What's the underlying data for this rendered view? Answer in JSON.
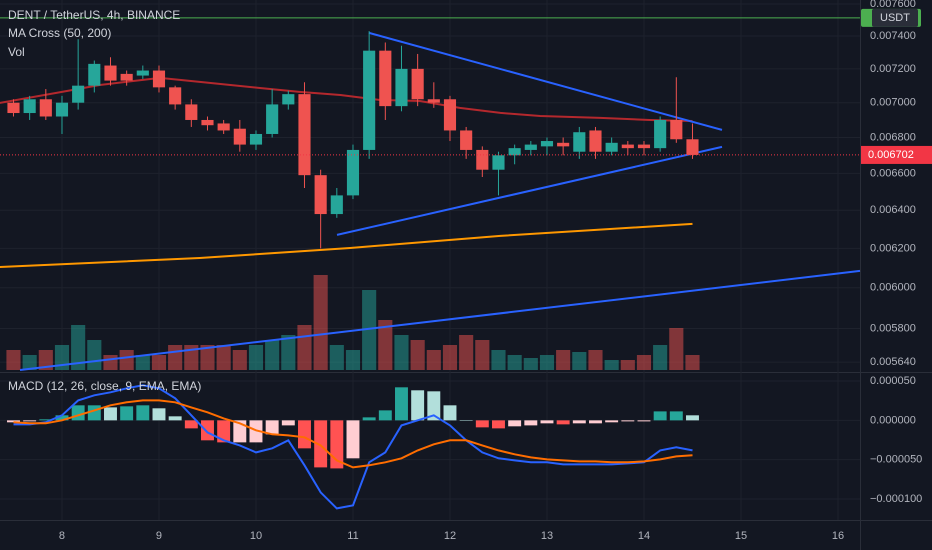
{
  "chart_data": [
    {
      "type": "candlestick",
      "title": "DENT / TetherUS, 4h, BINANCE",
      "indicator": "MA Cross (50, 200)",
      "volume_label": "Vol",
      "currency": "USDT",
      "log_scale": true,
      "grid": true,
      "up_color": "#26a69a",
      "down_color": "#ef5350",
      "x": [
        7.5,
        7.6667,
        7.8333,
        8,
        8.1667,
        8.3333,
        8.5,
        8.6667,
        8.8333,
        9,
        9.1667,
        9.3333,
        9.5,
        9.6667,
        9.8333,
        10,
        10.1667,
        10.3333,
        10.5,
        10.6667,
        10.8333,
        11,
        11.1667,
        11.3333,
        11.5,
        11.6667,
        11.8333,
        12,
        12.1667,
        12.3333,
        12.5,
        12.6667,
        12.8333,
        13,
        13.1667,
        13.3333,
        13.5,
        13.6667,
        13.8333,
        14,
        14.1667,
        14.3333,
        14.5
      ],
      "open": [
        0.007,
        0.00694,
        0.00702,
        0.00692,
        0.007,
        0.0071,
        0.00722,
        0.00717,
        0.00716,
        0.00719,
        0.00709,
        0.00699,
        0.0069,
        0.00688,
        0.00685,
        0.00676,
        0.00682,
        0.00699,
        0.00705,
        0.00659,
        0.00638,
        0.00648,
        0.00673,
        0.00731,
        0.00698,
        0.0072,
        0.00702,
        0.00702,
        0.00684,
        0.00673,
        0.00662,
        0.0067,
        0.00673,
        0.00675,
        0.00677,
        0.00672,
        0.00684,
        0.00672,
        0.00676,
        0.00676,
        0.00674,
        0.0069,
        0.00679
      ],
      "high": [
        0.00702,
        0.00704,
        0.00708,
        0.00704,
        0.00738,
        0.00725,
        0.00727,
        0.00719,
        0.00722,
        0.00722,
        0.0071,
        0.00702,
        0.00692,
        0.0069,
        0.0069,
        0.00684,
        0.00708,
        0.00707,
        0.00712,
        0.00662,
        0.00652,
        0.00676,
        0.00743,
        0.00736,
        0.00734,
        0.00729,
        0.00712,
        0.00704,
        0.00686,
        0.00675,
        0.00672,
        0.00676,
        0.00678,
        0.0068,
        0.0068,
        0.00686,
        0.00686,
        0.0068,
        0.00678,
        0.00678,
        0.00692,
        0.00715,
        0.00688
      ],
      "low": [
        0.00692,
        0.0069,
        0.0069,
        0.00682,
        0.00696,
        0.00706,
        0.0071,
        0.0071,
        0.00714,
        0.00706,
        0.00696,
        0.00686,
        0.00684,
        0.00682,
        0.00672,
        0.00673,
        0.0068,
        0.00696,
        0.00652,
        0.0062,
        0.00636,
        0.00646,
        0.00668,
        0.0069,
        0.00695,
        0.00698,
        0.00697,
        0.00678,
        0.00668,
        0.00658,
        0.00648,
        0.00665,
        0.0067,
        0.0067,
        0.0067,
        0.00668,
        0.00668,
        0.0067,
        0.0067,
        0.0067,
        0.00672,
        0.00677,
        0.00668
      ],
      "close": [
        0.00694,
        0.00702,
        0.00692,
        0.007,
        0.0071,
        0.00723,
        0.00713,
        0.00713,
        0.00719,
        0.00709,
        0.00699,
        0.0069,
        0.00687,
        0.00684,
        0.00676,
        0.00682,
        0.00699,
        0.00705,
        0.00659,
        0.00638,
        0.00648,
        0.00673,
        0.00731,
        0.00698,
        0.0072,
        0.00702,
        0.007,
        0.00684,
        0.00673,
        0.00662,
        0.0067,
        0.00674,
        0.00676,
        0.00678,
        0.00675,
        0.00683,
        0.00672,
        0.00677,
        0.00674,
        0.00674,
        0.0069,
        0.00679,
        0.006702
      ],
      "volume": [
        20,
        15,
        20,
        25,
        45,
        30,
        15,
        20,
        15,
        15,
        25,
        25,
        25,
        25,
        20,
        25,
        30,
        35,
        45,
        95,
        25,
        20,
        80,
        50,
        35,
        30,
        20,
        25,
        35,
        30,
        20,
        15,
        12,
        15,
        20,
        18,
        20,
        10,
        10,
        15,
        25,
        42,
        15
      ],
      "lines": [
        {
          "color": "#b4282d",
          "x": [
            7.36,
            8,
            8.39,
            9.01,
            9.42,
            10.04,
            10.45,
            10.87,
            11.28,
            11.69,
            12.1,
            12.52,
            12.93,
            13.55,
            14.06,
            14.5
          ],
          "values": [
            0.006999,
            0.007063,
            0.007104,
            0.007146,
            0.007122,
            0.007086,
            0.007063,
            0.007045,
            0.007016,
            0.00701,
            0.00697,
            0.006941,
            0.006923,
            0.006912,
            0.0069,
            0.006894
          ]
        },
        {
          "color": "#ff9800",
          "x": [
            7.36,
            9.42,
            10.97,
            12.52,
            14.5
          ],
          "values": [
            0.006105,
            0.006151,
            0.006202,
            0.006265,
            0.006328
          ]
        },
        {
          "color": "#2962ff",
          "x": [
            11.165,
            14.804
          ],
          "values": [
            0.007419,
            0.006843
          ]
        },
        {
          "color": "#2962ff",
          "x": [
            10.835,
            14.804
          ],
          "values": [
            0.00627,
            0.006747
          ]
        },
        {
          "color": "#2962ff",
          "x": [
            7.567,
            16.227
          ],
          "values": [
            0.005603,
            0.006085
          ]
        }
      ],
      "hline": {
        "value": 0.007512,
        "color": "#4caf50"
      },
      "price_line": {
        "value": 0.006702,
        "label": "0.006702",
        "color": "#f23645"
      },
      "xlim": [
        7.361,
        16.227
      ],
      "xticks": [
        8,
        9,
        10,
        11,
        12,
        13,
        14,
        15,
        16
      ],
      "ylim": [
        0.005603,
        0.007625
      ],
      "yticks": [
        {
          "value": 0.0076,
          "label": "0.007600"
        },
        {
          "value": 0.0074,
          "label": "0.007400"
        },
        {
          "value": 0.0072,
          "label": "0.007200"
        },
        {
          "value": 0.007,
          "label": "0.007000"
        },
        {
          "value": 0.0068,
          "label": "0.006800"
        },
        {
          "value": 0.0066,
          "label": "0.006600"
        },
        {
          "value": 0.0064,
          "label": "0.006400"
        },
        {
          "value": 0.0062,
          "label": "0.006200"
        },
        {
          "value": 0.006,
          "label": "0.006000"
        },
        {
          "value": 0.0058,
          "label": "0.005800"
        },
        {
          "value": 0.00564,
          "label": "0.005640"
        }
      ]
    },
    {
      "type": "macd",
      "title": "MACD (12, 26, close, 9, EMA, EMA)",
      "histogram_colors": [
        "#26a69a",
        "#b2dfdb",
        "#ffcdd2",
        "#ff5252"
      ],
      "x": [
        7.5,
        7.6667,
        7.8333,
        8,
        8.1667,
        8.3333,
        8.5,
        8.6667,
        8.8333,
        9,
        9.1667,
        9.3333,
        9.5,
        9.6667,
        9.8333,
        10,
        10.1667,
        10.3333,
        10.5,
        10.6667,
        10.8333,
        11,
        11.1667,
        11.3333,
        11.5,
        11.6667,
        11.8333,
        12,
        12.1667,
        12.3333,
        12.5,
        12.6667,
        12.8333,
        13,
        13.1667,
        13.3333,
        13.5,
        13.6667,
        13.8333,
        14,
        14.1667,
        14.3333,
        14.5
      ],
      "histogram": [
        -2.5e-06,
        -1.3e-06,
        1.3e-06,
        6.4e-06,
        1.91e-05,
        1.91e-05,
        1.65e-05,
        1.78e-05,
        1.91e-05,
        1.53e-05,
        5.1e-06,
        -1.02e-05,
        -2.54e-05,
        -2.8e-05,
        -2.8e-05,
        -2.8e-05,
        -1.78e-05,
        -6.4e-06,
        -3.56e-05,
        -5.98e-05,
        -6.11e-05,
        -4.83e-05,
        3.8e-06,
        1.27e-05,
        4.2e-05,
        3.82e-05,
        3.69e-05,
        1.91e-05,
        0,
        -8.9e-06,
        -1.02e-05,
        -7.6e-06,
        -6.4e-06,
        -3.8e-06,
        -5.1e-06,
        -3.8e-06,
        -3.8e-06,
        -2.5e-06,
        -1.3e-06,
        -1.3e-06,
        1.14e-05,
        1.14e-05,
        6.4e-06
      ],
      "series": [
        {
          "color": "#2962ff",
          "values": [
            -5.1e-06,
            -5.1e-06,
            -2.5e-06,
            6.4e-06,
            2.54e-05,
            3.18e-05,
            3.56e-05,
            4.07e-05,
            4.45e-05,
            4.07e-05,
            2.8e-05,
            6.4e-06,
            -1.53e-05,
            -2.54e-05,
            -3.18e-05,
            -4.07e-05,
            -3.56e-05,
            -2.54e-05,
            -5.72e-05,
            -9.16e-05,
            -0.0001119,
            -0.0001081,
            -5.34e-05,
            -4.07e-05,
            -6.4e-06,
            0,
            6.4e-06,
            -6.4e-06,
            -2.54e-05,
            -4.07e-05,
            -4.83e-05,
            -5.09e-05,
            -5.34e-05,
            -5.34e-05,
            -5.6e-05,
            -5.6e-05,
            -5.6e-05,
            -5.6e-05,
            -5.47e-05,
            -5.34e-05,
            -3.82e-05,
            -3.43e-05,
            -3.82e-05
          ]
        },
        {
          "color": "#ff6d00",
          "values": [
            -2.5e-06,
            -3.8e-06,
            -3.8e-06,
            0,
            6.4e-06,
            1.27e-05,
            1.91e-05,
            2.29e-05,
            2.54e-05,
            2.54e-05,
            2.29e-05,
            1.65e-05,
            1.02e-05,
            2.5e-06,
            -3.8e-06,
            -1.27e-05,
            -1.78e-05,
            -1.91e-05,
            -2.16e-05,
            -3.18e-05,
            -5.09e-05,
            -5.98e-05,
            -5.72e-05,
            -5.34e-05,
            -4.83e-05,
            -3.82e-05,
            -3.05e-05,
            -2.54e-05,
            -2.54e-05,
            -3.18e-05,
            -3.82e-05,
            -4.32e-05,
            -4.71e-05,
            -4.96e-05,
            -5.09e-05,
            -5.22e-05,
            -5.22e-05,
            -5.34e-05,
            -5.34e-05,
            -5.22e-05,
            -4.96e-05,
            -4.58e-05,
            -4.45e-05
          ]
        }
      ],
      "xlim": [
        7.361,
        16.227
      ],
      "ylim": [
        -0.0001267,
        6.02e-05
      ],
      "yticks": [
        {
          "value": 5e-05,
          "label": "0.000050"
        },
        {
          "value": 0,
          "label": "0.000000"
        },
        {
          "value": -5e-05,
          "label": "−0.000050"
        },
        {
          "value": -0.0001,
          "label": "−0.000100"
        }
      ]
    }
  ]
}
